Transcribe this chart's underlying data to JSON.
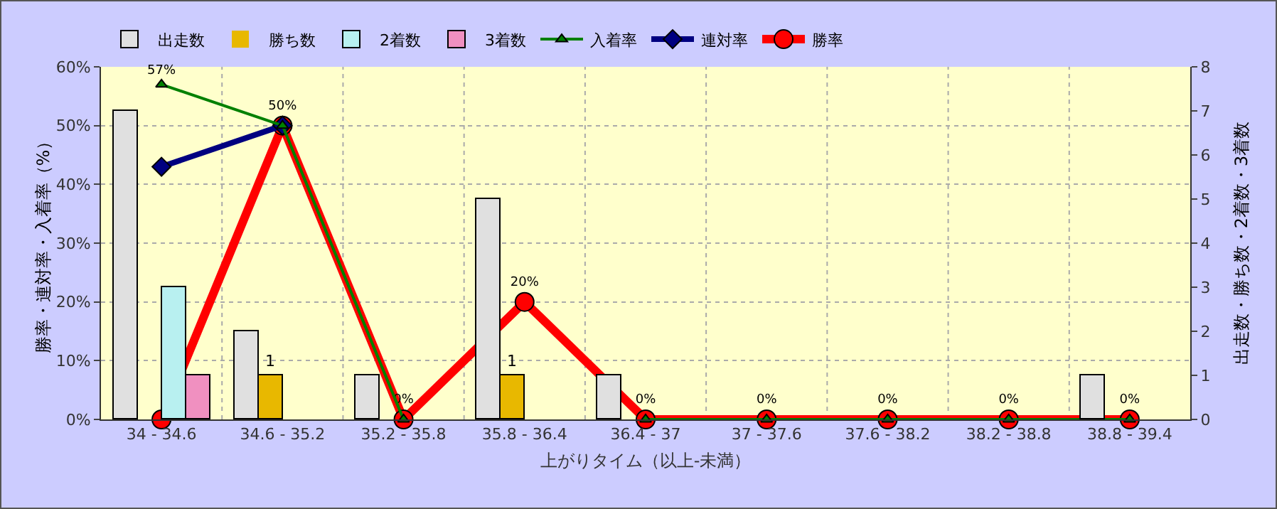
{
  "chart_data": {
    "type": "bar",
    "xlabel": "上がりタイム（以上-未満）",
    "ylabel": "勝率・連対率・入着率（%）",
    "y2label": "出走数・勝ち数・2着数・3着数",
    "categories": [
      "34 - 34.6",
      "34.6 - 35.2",
      "35.2 - 35.8",
      "35.8 - 36.4",
      "36.4 - 37",
      "37 - 37.6",
      "37.6 - 38.2",
      "38.2 - 38.8",
      "38.8 - 39.4"
    ],
    "series": [
      {
        "name": "出走数",
        "axis": "y2",
        "color": "#e0e0e0",
        "values": [
          7,
          2,
          1,
          5,
          1,
          0,
          0,
          0,
          1
        ]
      },
      {
        "name": "勝ち数",
        "axis": "y2",
        "color": "#e8b800",
        "values": [
          0,
          1,
          0,
          1,
          0,
          0,
          0,
          0,
          0
        ],
        "value_labels": [
          null,
          "1",
          null,
          "1",
          null,
          null,
          null,
          null,
          null
        ]
      },
      {
        "name": "2着数",
        "axis": "y2",
        "color": "#b8f0f0",
        "values": [
          3,
          0,
          0,
          0,
          0,
          0,
          0,
          0,
          0
        ]
      },
      {
        "name": "3着数",
        "axis": "y2",
        "color": "#f090c0",
        "values": [
          1,
          0,
          0,
          0,
          0,
          0,
          0,
          0,
          0
        ]
      },
      {
        "name": "入着率",
        "type": "line",
        "color": "#008000",
        "marker": "triangle",
        "values": [
          57,
          50,
          0,
          null,
          0,
          0,
          0,
          0,
          0
        ],
        "value_labels": [
          "57%",
          null,
          null,
          null,
          null,
          null,
          null,
          null,
          null
        ]
      },
      {
        "name": "連対率",
        "type": "line",
        "color": "#000080",
        "marker": "diamond",
        "values": [
          43,
          50,
          null,
          null,
          null,
          null,
          null,
          null,
          null
        ]
      },
      {
        "name": "勝率",
        "type": "line",
        "color": "#ff0000",
        "marker": "circle",
        "values": [
          0,
          50,
          0,
          20,
          0,
          0,
          0,
          0,
          0
        ],
        "value_labels": [
          null,
          "50%",
          "0%",
          "20%",
          "0%",
          "0%",
          "0%",
          "0%",
          "0%"
        ]
      }
    ],
    "ylim": [
      0,
      60
    ],
    "yticks": [
      {
        "value": 0,
        "label": "0%"
      },
      {
        "value": 10,
        "label": "10%"
      },
      {
        "value": 20,
        "label": "20%"
      },
      {
        "value": 30,
        "label": "30%"
      },
      {
        "value": 40,
        "label": "40%"
      },
      {
        "value": 50,
        "label": "50%"
      },
      {
        "value": 60,
        "label": "60%"
      }
    ],
    "y2lim": [
      0,
      8
    ],
    "y2ticks": [
      0,
      1,
      2,
      3,
      4,
      5,
      6,
      7,
      8
    ],
    "grid": true,
    "legend": "top left"
  }
}
